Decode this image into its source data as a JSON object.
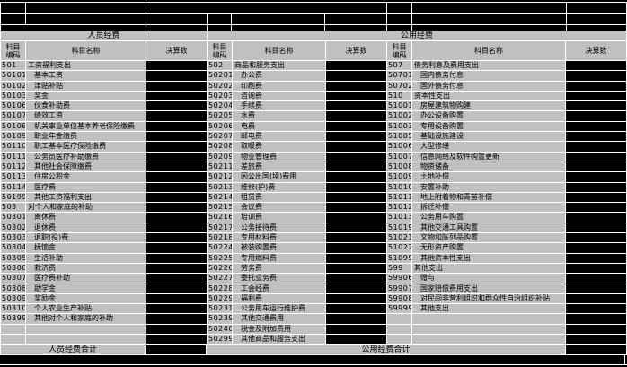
{
  "colors": {
    "background": "#000000",
    "cell": "#c0c0c0",
    "gridline": "#ffffff",
    "text": "#000000"
  },
  "column_headers": {
    "code_line1": "科目",
    "code_line2": "编码",
    "name": "科目名称",
    "value": "决算数"
  },
  "bands": {
    "personnel": "人员经费",
    "public": "公用经费"
  },
  "totals": {
    "personnel_label": "人员经费合计",
    "personnel_value": "",
    "public_label": "公用经费合计",
    "public_value": ""
  },
  "sections": [
    {
      "name": "personnel-expense",
      "rows": [
        {
          "code": "501",
          "name": "工资福利支出",
          "value": ""
        },
        {
          "code": "50101",
          "name": "基本工资",
          "value": ""
        },
        {
          "code": "50102",
          "name": "津贴补贴",
          "value": ""
        },
        {
          "code": "50103",
          "name": "奖金",
          "value": ""
        },
        {
          "code": "50106",
          "name": "伙食补助费",
          "value": ""
        },
        {
          "code": "50107",
          "name": "绩效工资",
          "value": ""
        },
        {
          "code": "50108",
          "name": "机关事业单位基本养老保险缴费",
          "value": ""
        },
        {
          "code": "50109",
          "name": "职业年金缴费",
          "value": ""
        },
        {
          "code": "50110",
          "name": "职工基本医疗保险缴费",
          "value": ""
        },
        {
          "code": "50111",
          "name": "公务员医疗补助缴费",
          "value": ""
        },
        {
          "code": "50112",
          "name": "其他社会保障缴费",
          "value": ""
        },
        {
          "code": "50113",
          "name": "住房公积金",
          "value": ""
        },
        {
          "code": "50114",
          "name": "医疗费",
          "value": ""
        },
        {
          "code": "50199",
          "name": "其他工资福利支出",
          "value": ""
        },
        {
          "code": "503",
          "name": "对个人和家庭的补助",
          "value": ""
        },
        {
          "code": "50301",
          "name": "离休费",
          "value": ""
        },
        {
          "code": "50302",
          "name": "退休费",
          "value": ""
        },
        {
          "code": "50303",
          "name": "退职(役)费",
          "value": ""
        },
        {
          "code": "50304",
          "name": "抚恤金",
          "value": ""
        },
        {
          "code": "50305",
          "name": "生活补助",
          "value": ""
        },
        {
          "code": "50306",
          "name": "救济费",
          "value": ""
        },
        {
          "code": "50307",
          "name": "医疗费补助",
          "value": ""
        },
        {
          "code": "50308",
          "name": "助学金",
          "value": ""
        },
        {
          "code": "50309",
          "name": "奖励金",
          "value": ""
        },
        {
          "code": "50310",
          "name": "个人农业生产补贴",
          "value": ""
        },
        {
          "code": "50399",
          "name": "其他对个人和家庭的补助",
          "value": ""
        },
        {
          "code": "",
          "name": "",
          "value": ""
        },
        {
          "code": "",
          "name": "",
          "value": ""
        }
      ]
    },
    {
      "name": "public-expense-goods-services",
      "rows": [
        {
          "code": "502",
          "name": "商品和服务支出",
          "value": ""
        },
        {
          "code": "50201",
          "name": "办公费",
          "value": ""
        },
        {
          "code": "50202",
          "name": "印刷费",
          "value": ""
        },
        {
          "code": "50203",
          "name": "咨询费",
          "value": ""
        },
        {
          "code": "50204",
          "name": "手续费",
          "value": ""
        },
        {
          "code": "50205",
          "name": "水费",
          "value": ""
        },
        {
          "code": "50206",
          "name": "电费",
          "value": ""
        },
        {
          "code": "50207",
          "name": "邮电费",
          "value": ""
        },
        {
          "code": "50208",
          "name": "取暖费",
          "value": ""
        },
        {
          "code": "50209",
          "name": "物业管理费",
          "value": ""
        },
        {
          "code": "50211",
          "name": "差旅费",
          "value": ""
        },
        {
          "code": "50212",
          "name": "因公出国(境)费用",
          "value": ""
        },
        {
          "code": "50213",
          "name": "维修(护)费",
          "value": ""
        },
        {
          "code": "50214",
          "name": "租赁费",
          "value": ""
        },
        {
          "code": "50215",
          "name": "会议费",
          "value": ""
        },
        {
          "code": "50216",
          "name": "培训费",
          "value": ""
        },
        {
          "code": "50217",
          "name": "公务接待费",
          "value": ""
        },
        {
          "code": "50218",
          "name": "专用材料费",
          "value": ""
        },
        {
          "code": "50224",
          "name": "被装购置费",
          "value": ""
        },
        {
          "code": "50225",
          "name": "专用燃料费",
          "value": ""
        },
        {
          "code": "50226",
          "name": "劳务费",
          "value": ""
        },
        {
          "code": "50227",
          "name": "委托业务费",
          "value": ""
        },
        {
          "code": "50228",
          "name": "工会经费",
          "value": ""
        },
        {
          "code": "50229",
          "name": "福利费",
          "value": ""
        },
        {
          "code": "50231",
          "name": "公务用车运行维护费",
          "value": ""
        },
        {
          "code": "50239",
          "name": "其他交通费用",
          "value": ""
        },
        {
          "code": "50240",
          "name": "税金及附加费用",
          "value": ""
        },
        {
          "code": "50299",
          "name": "其他商品和服务支出",
          "value": ""
        }
      ]
    },
    {
      "name": "public-expense-other",
      "rows": [
        {
          "code": "507",
          "name": "债务利息及费用支出",
          "value": ""
        },
        {
          "code": "50701",
          "name": "国内债务付息",
          "value": ""
        },
        {
          "code": "50702",
          "name": "国外债务付息",
          "value": ""
        },
        {
          "code": "510",
          "name": "资本性支出",
          "value": ""
        },
        {
          "code": "51001",
          "name": "房屋建筑物购建",
          "value": ""
        },
        {
          "code": "51002",
          "name": "办公设备购置",
          "value": ""
        },
        {
          "code": "51003",
          "name": "专用设备购置",
          "value": ""
        },
        {
          "code": "51005",
          "name": "基础设施建设",
          "value": ""
        },
        {
          "code": "51006",
          "name": "大型修缮",
          "value": ""
        },
        {
          "code": "51007",
          "name": "信息网络及软件购置更新",
          "value": ""
        },
        {
          "code": "51008",
          "name": "物资储备",
          "value": ""
        },
        {
          "code": "51009",
          "name": "土地补偿",
          "value": ""
        },
        {
          "code": "51010",
          "name": "安置补助",
          "value": ""
        },
        {
          "code": "51011",
          "name": "地上附着物和青苗补偿",
          "value": ""
        },
        {
          "code": "51012",
          "name": "拆迁补偿",
          "value": ""
        },
        {
          "code": "51013",
          "name": "公务用车购置",
          "value": ""
        },
        {
          "code": "51019",
          "name": "其他交通工具购置",
          "value": ""
        },
        {
          "code": "51021",
          "name": "文物和陈列品购置",
          "value": ""
        },
        {
          "code": "51022",
          "name": "无形资产购置",
          "value": ""
        },
        {
          "code": "51099",
          "name": "其他资本性支出",
          "value": ""
        },
        {
          "code": "599",
          "name": "其他支出",
          "value": ""
        },
        {
          "code": "59906",
          "name": "赠与",
          "value": ""
        },
        {
          "code": "59907",
          "name": "国家赔偿费用支出",
          "value": ""
        },
        {
          "code": "59908",
          "name": "对民间非营利组织和群众性自治组织补贴",
          "value": ""
        },
        {
          "code": "59999",
          "name": "其他支出",
          "value": ""
        },
        {
          "code": "",
          "name": "",
          "value": ""
        },
        {
          "code": "",
          "name": "",
          "value": ""
        },
        {
          "code": "",
          "name": "",
          "value": ""
        }
      ]
    }
  ]
}
